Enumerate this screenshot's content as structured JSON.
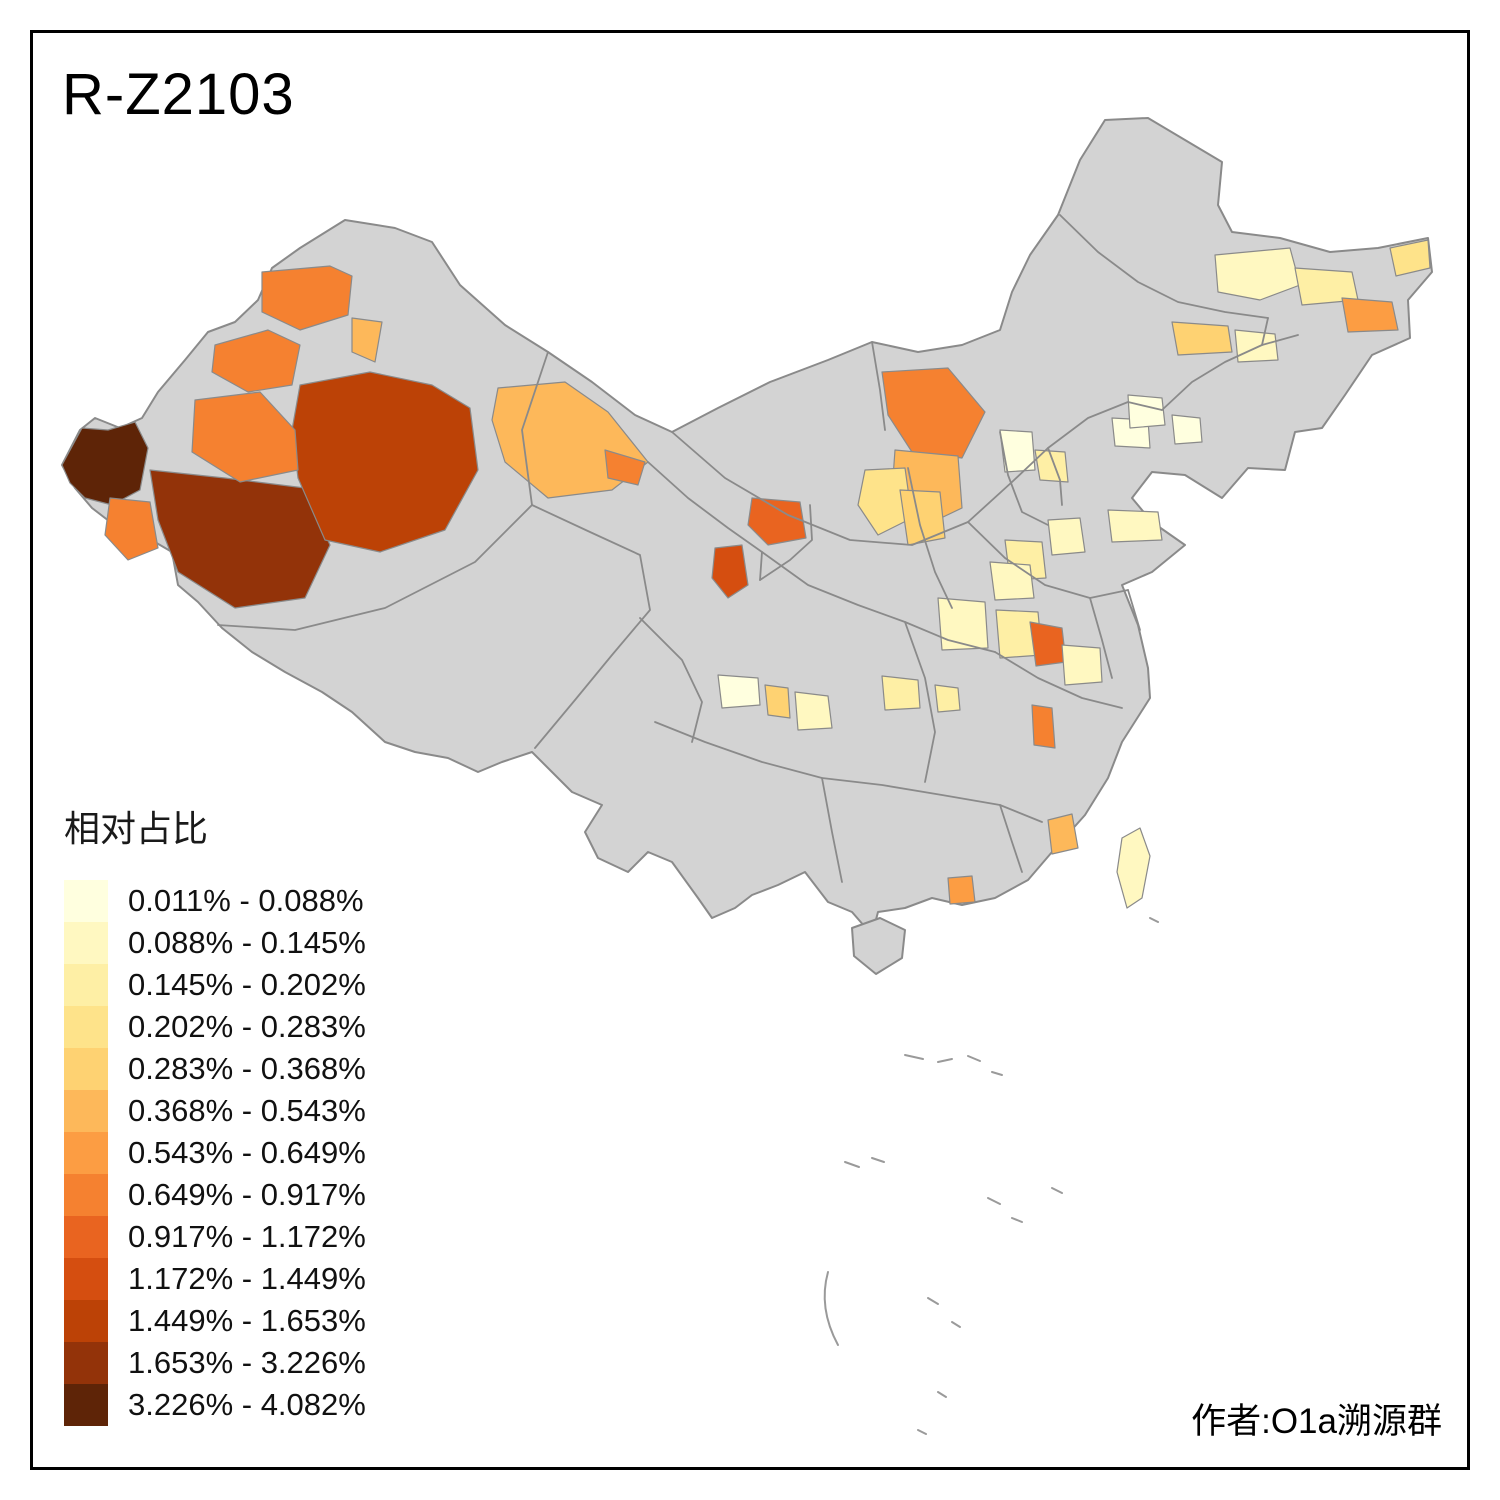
{
  "title": "R-Z2103",
  "legend": {
    "title": "相对占比",
    "items": [
      {
        "range": "0.011% - 0.088%",
        "color": "#FFFFDF"
      },
      {
        "range": "0.088% - 0.145%",
        "color": "#FFF8C1"
      },
      {
        "range": "0.145% - 0.202%",
        "color": "#FEEFA5"
      },
      {
        "range": "0.202% - 0.283%",
        "color": "#FEE38A"
      },
      {
        "range": "0.283% - 0.368%",
        "color": "#FED272"
      },
      {
        "range": "0.368% - 0.543%",
        "color": "#FDB85A"
      },
      {
        "range": "0.543% - 0.649%",
        "color": "#FC9D43"
      },
      {
        "range": "0.649% - 0.917%",
        "color": "#F58130"
      },
      {
        "range": "0.917% - 1.172%",
        "color": "#E96420"
      },
      {
        "range": "1.172% - 1.449%",
        "color": "#D54E10"
      },
      {
        "range": "1.449% - 1.653%",
        "color": "#BC4206"
      },
      {
        "range": "1.653% - 3.226%",
        "color": "#933309"
      },
      {
        "range": "3.226% - 4.082%",
        "color": "#5E2407"
      }
    ]
  },
  "credit": "作者:O1a溯源群",
  "map": {
    "name": "China choropleth map of R-Z2103 relative frequency by prefecture",
    "colors": {
      "background": "#FFFFFF",
      "land": "#D3D3D3",
      "border": "#8A8A8A",
      "frame": "#000000",
      "text": "#000000"
    }
  }
}
